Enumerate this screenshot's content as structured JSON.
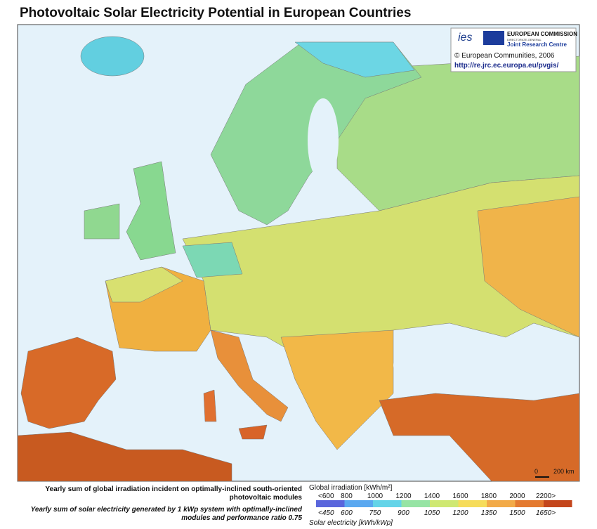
{
  "header": {
    "title": "Photovoltaic Solar Electricity Potential in European Countries"
  },
  "logo": {
    "ies": "ies",
    "org": "EUROPEAN COMMISSION",
    "dg": "DIRECTORATE-GENERAL",
    "jrc": "Joint Research Centre",
    "copyright": "© European Communities, 2006",
    "url": "http://re.jrc.ec.europa.eu/pvgis/"
  },
  "scale": {
    "zero": "0",
    "label": "200 km"
  },
  "legend": {
    "irradiation_desc": "Yearly sum of global irradiation incident on optimally-inclined south-oriented photovoltaic modules",
    "irradiation_unit": "Global irradiation [kWh/m²]",
    "irradiation_ticks": [
      "<600",
      "800",
      "1000",
      "1200",
      "1400",
      "1600",
      "1800",
      "2000",
      "2200>"
    ],
    "electricity_desc": "Yearly sum of solar electricity generated by 1 kWp system with optimally-inclined modules and performance ratio 0.75",
    "electricity_unit": "Solar electricity [kWh/kWp]",
    "electricity_ticks": [
      "<450",
      "600",
      "750",
      "900",
      "1050",
      "1200",
      "1350",
      "1500",
      "1650>"
    ],
    "colors": [
      "#5a66dc",
      "#5aa8f0",
      "#64d4e8",
      "#96e4a4",
      "#cfe872",
      "#f6dc5a",
      "#f2aa48",
      "#e47a30",
      "#c4461c"
    ]
  }
}
